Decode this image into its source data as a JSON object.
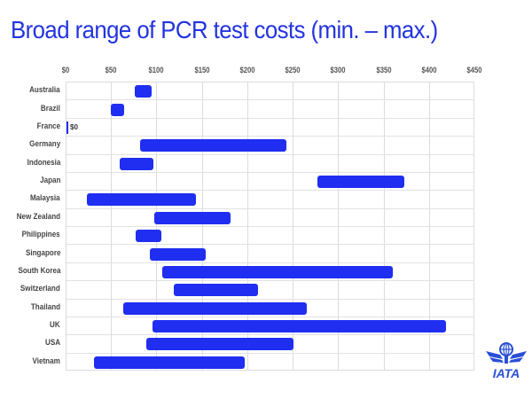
{
  "title": "Broad range of PCR test costs (min. – max.)",
  "colors": {
    "bar": "#1f2ef0",
    "title": "#2233e0",
    "grid": "#dcdcdc",
    "logo": "#2a4fd6"
  },
  "logo": {
    "text": "IATA"
  },
  "chart_data": {
    "type": "bar",
    "orientation": "horizontal-floating-range",
    "title": "Broad range of PCR test costs (min. – max.)",
    "xlabel": "",
    "ylabel": "",
    "xlim": [
      0,
      450
    ],
    "x_ticks": [
      "$0",
      "$50",
      "$100",
      "$150",
      "$200",
      "$250",
      "$300",
      "$350",
      "$400",
      "$450"
    ],
    "grid": true,
    "legend": null,
    "categories": [
      "Australia",
      "Brazil",
      "France",
      "Germany",
      "Indonesia",
      "Japan",
      "Malaysia",
      "New Zealand",
      "Philippines",
      "Singapore",
      "South Korea",
      "Switzerland",
      "Thailand",
      "UK",
      "USA",
      "Vietnam"
    ],
    "series": [
      {
        "name": "min",
        "values": [
          75,
          49,
          0,
          81,
          59,
          276,
          22,
          97,
          76,
          92,
          105,
          118,
          62,
          95,
          88,
          30
        ]
      },
      {
        "name": "max",
        "values": [
          94,
          63,
          0,
          242,
          96,
          372,
          143,
          181,
          104,
          153,
          359,
          211,
          265,
          418,
          250,
          196
        ]
      }
    ],
    "annotations": [
      {
        "category": "France",
        "text": "$0"
      }
    ]
  }
}
